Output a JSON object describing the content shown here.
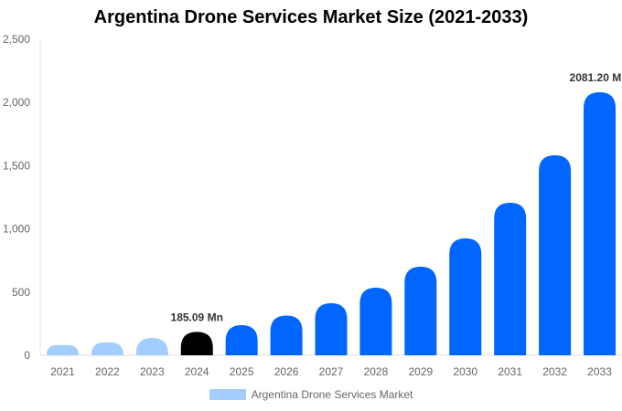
{
  "chart_data": {
    "type": "bar",
    "title": "Argentina Drone Services Market Size (2021-2033)",
    "categories": [
      "2021",
      "2022",
      "2023",
      "2024",
      "2025",
      "2026",
      "2027",
      "2028",
      "2029",
      "2030",
      "2031",
      "2032",
      "2033"
    ],
    "series": [
      {
        "name": "Argentina Drone Services Market",
        "values": [
          80,
          101,
          137,
          185.09,
          238,
          314,
          412,
          535,
          701,
          925,
          1207,
          1582,
          2081.2
        ]
      }
    ],
    "ylim": [
      0,
      2500
    ],
    "yticks": [
      "0",
      "500",
      "1,000",
      "1,500",
      "2,000",
      "2,500"
    ],
    "ytick_values": [
      0,
      500,
      1000,
      1500,
      2000,
      2500
    ],
    "data_labels": [
      {
        "index": 3,
        "text": "185.09 Mn"
      },
      {
        "index": 12,
        "text": "2081.20 Mn"
      }
    ],
    "colors": {
      "historical": "#a3cdfc",
      "base_year": "#000000",
      "forecast": "#0066ff"
    },
    "grid": false,
    "legend_position": "bottom"
  }
}
